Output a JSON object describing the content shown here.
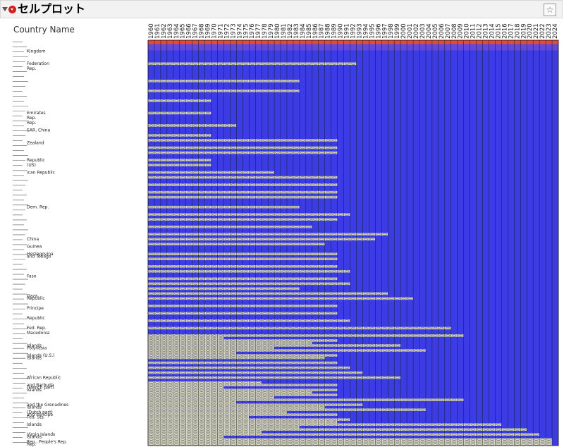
{
  "panel": {
    "title": "セルプロット",
    "row_header": "Country Name",
    "star_icon": "star-icon"
  },
  "colors": {
    "fill": "#3c3ce6",
    "hot": "#e8483a",
    "missing": "#d8d8c4",
    "missing_mark": "#f4f0b8",
    "line": "#1a1a1a",
    "header_bg": "#f2f2f2",
    "hotspot": "#d31f1f"
  },
  "chart_data": {
    "type": "heatmap",
    "title": "セルプロット",
    "row_header": "Country Name",
    "columns": [
      "1960",
      "1961",
      "1962",
      "1963",
      "1964",
      "1965",
      "1966",
      "1967",
      "1968",
      "1969",
      "1970",
      "1971",
      "1972",
      "1973",
      "1974",
      "1975",
      "1976",
      "1977",
      "1978",
      "1979",
      "1980",
      "1981",
      "1982",
      "1983",
      "1984",
      "1985",
      "1986",
      "1987",
      "1988",
      "1989",
      "1990",
      "1991",
      "1992",
      "1993",
      "1994",
      "1995",
      "1996",
      "1997",
      "1998",
      "1999",
      "2000",
      "2001",
      "2002",
      "2003",
      "2004",
      "2005",
      "2006",
      "2007",
      "2008",
      "2009",
      "2010",
      "2011",
      "2012",
      "2013",
      "2014",
      "2015",
      "2016",
      "2017",
      "2018",
      "2019",
      "2020",
      "2021",
      "2022",
      "2023",
      "2024"
    ],
    "visible_row_labels": [
      {
        "row": 4,
        "label": "Kingdom"
      },
      {
        "row": 9,
        "label": "Federation"
      },
      {
        "row": 11,
        "label": "Rep."
      },
      {
        "row": 29,
        "label": "Emirates"
      },
      {
        "row": 31,
        "label": "Rep."
      },
      {
        "row": 33,
        "label": "Rep."
      },
      {
        "row": 36,
        "label": "SAR, China"
      },
      {
        "row": 41,
        "label": "Zealand"
      },
      {
        "row": 48,
        "label": "Republic"
      },
      {
        "row": 50,
        "label": "(US)"
      },
      {
        "row": 53,
        "label": "ican Republic"
      },
      {
        "row": 67,
        "label": "Dem. Rep."
      },
      {
        "row": 80,
        "label": "China"
      },
      {
        "row": 83,
        "label": "Guinea"
      },
      {
        "row": 86,
        "label": "Herzegovina"
      },
      {
        "row": 87,
        "label": "and Tobago"
      },
      {
        "row": 95,
        "label": "Faso"
      },
      {
        "row": 103,
        "label": "Gaza"
      },
      {
        "row": 104,
        "label": "Republic"
      },
      {
        "row": 108,
        "label": "Principe"
      },
      {
        "row": 112,
        "label": "Republic"
      },
      {
        "row": 116,
        "label": "Fed. Rep."
      },
      {
        "row": 118,
        "label": "Macedonia"
      },
      {
        "row": 123,
        "label": "Islands"
      },
      {
        "row": 124,
        "label": "Polynesia"
      },
      {
        "row": 127,
        "label": "Islands (U.S.)"
      },
      {
        "row": 128,
        "label": "Islands"
      },
      {
        "row": 136,
        "label": "African Republic"
      },
      {
        "row": 139,
        "label": "and Barbuda"
      },
      {
        "row": 140,
        "label": "(French part)"
      },
      {
        "row": 141,
        "label": "Islands"
      },
      {
        "row": 147,
        "label": "and the Grenadines"
      },
      {
        "row": 148,
        "label": "Islands"
      },
      {
        "row": 150,
        "label": "(Dutch part)"
      },
      {
        "row": 151,
        "label": "and Principe"
      },
      {
        "row": 152,
        "label": "Fed. Sts."
      },
      {
        "row": 155,
        "label": "Islands"
      },
      {
        "row": 159,
        "label": "Virgin Islands"
      },
      {
        "row": 160,
        "label": "Islands"
      },
      {
        "row": 162,
        "label": "Rep., People's Rep."
      },
      {
        "row": 163,
        "label": "Rep."
      }
    ],
    "row_count": 164,
    "missing_data_extent": [
      0,
      0,
      0,
      0,
      0,
      0,
      0,
      0,
      0,
      24,
      0,
      0,
      0,
      0,
      0,
      0,
      0,
      0,
      0,
      0,
      0,
      0,
      2,
      0,
      0,
      0,
      0,
      0,
      0,
      0,
      0,
      0,
      0,
      0,
      0,
      0,
      0,
      0,
      0,
      0,
      0,
      0,
      0,
      0,
      0,
      0,
      0,
      0,
      0,
      0,
      0,
      0,
      0,
      0,
      0,
      0,
      0,
      0,
      0,
      0,
      0,
      0,
      0,
      0,
      0,
      0,
      0,
      0,
      0,
      0,
      0,
      0,
      0,
      0,
      0,
      0,
      0,
      0,
      0,
      0,
      0,
      0,
      0,
      0,
      0,
      0,
      0,
      0,
      0,
      0,
      0,
      0,
      0,
      0,
      0,
      0,
      0,
      0,
      0,
      0,
      0,
      0,
      0,
      0,
      0,
      0,
      0,
      0,
      0,
      0,
      0,
      0,
      0,
      0,
      0,
      0,
      0,
      0,
      0,
      0,
      0,
      0,
      0,
      0,
      0,
      0,
      0,
      0,
      0,
      0,
      0,
      0,
      0,
      0,
      0,
      0,
      0,
      0,
      0,
      0,
      0,
      0,
      0,
      0,
      0,
      0,
      0,
      0,
      0,
      0,
      0,
      0,
      0,
      0,
      0,
      0,
      0,
      0,
      0,
      0,
      0,
      0,
      0,
      0
    ],
    "color_scale": {
      "low": "#3c3ce6",
      "high": "#e8483a",
      "missing": "#d8d8c4"
    }
  }
}
